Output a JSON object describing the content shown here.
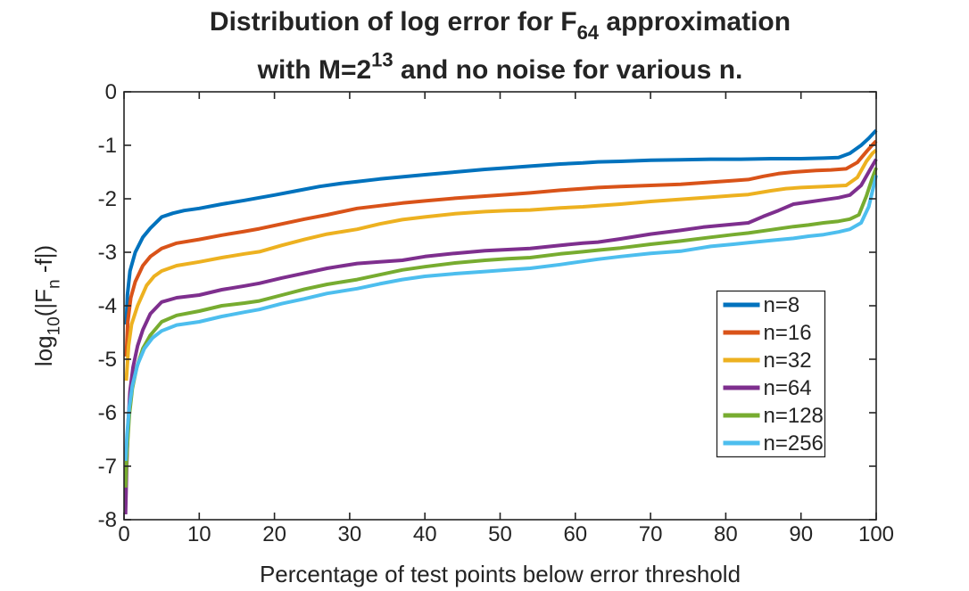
{
  "figure": {
    "background": "#ffffff",
    "axis_color": "#242424",
    "text_color": "#242424"
  },
  "chart_data": {
    "type": "line",
    "title": "Distribution of log error for F_{64} approximation with M=2^{13} and no noise for various n.",
    "title_lines": [
      {
        "segments": [
          {
            "t": "Distribution of log error for F"
          },
          {
            "t": "64",
            "sub": true
          },
          {
            "t": " approximation"
          }
        ]
      },
      {
        "segments": [
          {
            "t": "with M=2"
          },
          {
            "t": "13",
            "sup": true
          },
          {
            "t": " and no noise for various n."
          }
        ]
      }
    ],
    "xlabel": "Percentage of test points below error threshold",
    "ylabel": "log_{10}(|F_n -f|)",
    "ylabel_segments": [
      {
        "t": "log"
      },
      {
        "t": "10",
        "sub": true
      },
      {
        "t": "(|F"
      },
      {
        "t": "n",
        "sub": true
      },
      {
        "t": " -f|)"
      }
    ],
    "xlim": [
      0,
      100
    ],
    "ylim": [
      -8,
      0
    ],
    "xticks": [
      0,
      10,
      20,
      30,
      40,
      50,
      60,
      70,
      80,
      90,
      100
    ],
    "yticks": [
      0,
      -1,
      -2,
      -3,
      -4,
      -5,
      -6,
      -7,
      -8
    ],
    "grid": false,
    "box": true,
    "tick_direction": "in",
    "legend": {
      "position": "inside-right",
      "entries": [
        {
          "label": "n=8",
          "color": "#0072BD"
        },
        {
          "label": "n=16",
          "color": "#D95319"
        },
        {
          "label": "n=32",
          "color": "#EDB120"
        },
        {
          "label": "n=64",
          "color": "#7E2F8E"
        },
        {
          "label": "n=128",
          "color": "#77AC30"
        },
        {
          "label": "n=256",
          "color": "#4DBEEE"
        }
      ]
    },
    "series": [
      {
        "name": "n=8",
        "color": "#0072BD",
        "line_width": 4,
        "points": [
          [
            0.3,
            -4.35
          ],
          [
            0.45,
            -3.8
          ],
          [
            0.8,
            -3.35
          ],
          [
            1.5,
            -3.0
          ],
          [
            2.5,
            -2.72
          ],
          [
            3.5,
            -2.55
          ],
          [
            5,
            -2.34
          ],
          [
            6.5,
            -2.27
          ],
          [
            8,
            -2.22
          ],
          [
            10,
            -2.18
          ],
          [
            13,
            -2.1
          ],
          [
            16,
            -2.03
          ],
          [
            18,
            -1.98
          ],
          [
            20,
            -1.93
          ],
          [
            23,
            -1.85
          ],
          [
            26,
            -1.77
          ],
          [
            29,
            -1.71
          ],
          [
            31,
            -1.68
          ],
          [
            34,
            -1.63
          ],
          [
            37,
            -1.59
          ],
          [
            40,
            -1.55
          ],
          [
            44,
            -1.5
          ],
          [
            48,
            -1.45
          ],
          [
            51,
            -1.42
          ],
          [
            54,
            -1.39
          ],
          [
            58,
            -1.35
          ],
          [
            61,
            -1.33
          ],
          [
            63,
            -1.31
          ],
          [
            66,
            -1.3
          ],
          [
            70,
            -1.28
          ],
          [
            74,
            -1.27
          ],
          [
            78,
            -1.26
          ],
          [
            82,
            -1.26
          ],
          [
            86,
            -1.25
          ],
          [
            90,
            -1.25
          ],
          [
            93,
            -1.24
          ],
          [
            95,
            -1.23
          ],
          [
            96.5,
            -1.15
          ],
          [
            98,
            -1.0
          ],
          [
            99,
            -0.87
          ],
          [
            99.6,
            -0.78
          ],
          [
            100,
            -0.72
          ]
        ]
      },
      {
        "name": "n=16",
        "color": "#D95319",
        "line_width": 4,
        "points": [
          [
            0.3,
            -4.95
          ],
          [
            0.5,
            -4.3
          ],
          [
            0.9,
            -3.85
          ],
          [
            1.5,
            -3.55
          ],
          [
            2.5,
            -3.25
          ],
          [
            3.5,
            -3.08
          ],
          [
            5,
            -2.93
          ],
          [
            7,
            -2.83
          ],
          [
            10,
            -2.76
          ],
          [
            13,
            -2.68
          ],
          [
            16,
            -2.61
          ],
          [
            18,
            -2.56
          ],
          [
            21,
            -2.47
          ],
          [
            24,
            -2.38
          ],
          [
            27,
            -2.3
          ],
          [
            31,
            -2.18
          ],
          [
            34,
            -2.13
          ],
          [
            37,
            -2.08
          ],
          [
            40,
            -2.04
          ],
          [
            44,
            -1.99
          ],
          [
            48,
            -1.95
          ],
          [
            51,
            -1.92
          ],
          [
            54,
            -1.89
          ],
          [
            58,
            -1.84
          ],
          [
            61,
            -1.81
          ],
          [
            63,
            -1.79
          ],
          [
            66,
            -1.77
          ],
          [
            70,
            -1.75
          ],
          [
            74,
            -1.73
          ],
          [
            78,
            -1.69
          ],
          [
            81,
            -1.66
          ],
          [
            83,
            -1.64
          ],
          [
            85,
            -1.58
          ],
          [
            87,
            -1.53
          ],
          [
            89,
            -1.5
          ],
          [
            92,
            -1.47
          ],
          [
            94,
            -1.46
          ],
          [
            96,
            -1.44
          ],
          [
            97.5,
            -1.32
          ],
          [
            98.7,
            -1.12
          ],
          [
            99.5,
            -0.99
          ],
          [
            100,
            -0.92
          ]
        ]
      },
      {
        "name": "n=32",
        "color": "#EDB120",
        "line_width": 4,
        "points": [
          [
            0.3,
            -5.4
          ],
          [
            0.6,
            -4.75
          ],
          [
            1,
            -4.35
          ],
          [
            1.8,
            -4.0
          ],
          [
            3,
            -3.62
          ],
          [
            4,
            -3.45
          ],
          [
            5,
            -3.35
          ],
          [
            7,
            -3.25
          ],
          [
            10,
            -3.18
          ],
          [
            13,
            -3.1
          ],
          [
            16,
            -3.03
          ],
          [
            18,
            -2.99
          ],
          [
            21,
            -2.87
          ],
          [
            24,
            -2.76
          ],
          [
            27,
            -2.66
          ],
          [
            31,
            -2.57
          ],
          [
            34,
            -2.47
          ],
          [
            37,
            -2.39
          ],
          [
            40,
            -2.34
          ],
          [
            44,
            -2.28
          ],
          [
            48,
            -2.24
          ],
          [
            51,
            -2.22
          ],
          [
            54,
            -2.21
          ],
          [
            58,
            -2.17
          ],
          [
            61,
            -2.15
          ],
          [
            63,
            -2.13
          ],
          [
            66,
            -2.1
          ],
          [
            70,
            -2.05
          ],
          [
            74,
            -2.01
          ],
          [
            78,
            -1.97
          ],
          [
            81,
            -1.94
          ],
          [
            83,
            -1.92
          ],
          [
            86,
            -1.85
          ],
          [
            88,
            -1.81
          ],
          [
            90,
            -1.79
          ],
          [
            93,
            -1.77
          ],
          [
            96,
            -1.75
          ],
          [
            97.5,
            -1.6
          ],
          [
            98.7,
            -1.3
          ],
          [
            99.5,
            -1.15
          ],
          [
            100,
            -1.09
          ]
        ]
      },
      {
        "name": "n=64",
        "color": "#7E2F8E",
        "line_width": 4,
        "points": [
          [
            0.2,
            -7.9
          ],
          [
            0.35,
            -7.0
          ],
          [
            0.55,
            -6.2
          ],
          [
            0.8,
            -5.6
          ],
          [
            1.2,
            -5.15
          ],
          [
            1.8,
            -4.75
          ],
          [
            2.5,
            -4.45
          ],
          [
            3.5,
            -4.15
          ],
          [
            5,
            -3.93
          ],
          [
            7,
            -3.85
          ],
          [
            10,
            -3.8
          ],
          [
            13,
            -3.7
          ],
          [
            16,
            -3.63
          ],
          [
            18,
            -3.58
          ],
          [
            21,
            -3.48
          ],
          [
            24,
            -3.39
          ],
          [
            27,
            -3.3
          ],
          [
            31,
            -3.21
          ],
          [
            34,
            -3.18
          ],
          [
            37,
            -3.15
          ],
          [
            40,
            -3.08
          ],
          [
            44,
            -3.02
          ],
          [
            48,
            -2.97
          ],
          [
            51,
            -2.95
          ],
          [
            54,
            -2.93
          ],
          [
            58,
            -2.87
          ],
          [
            61,
            -2.83
          ],
          [
            63,
            -2.81
          ],
          [
            66,
            -2.75
          ],
          [
            70,
            -2.66
          ],
          [
            74,
            -2.59
          ],
          [
            77,
            -2.53
          ],
          [
            80,
            -2.49
          ],
          [
            83,
            -2.45
          ],
          [
            85,
            -2.33
          ],
          [
            87,
            -2.22
          ],
          [
            89,
            -2.1
          ],
          [
            91,
            -2.06
          ],
          [
            93,
            -2.02
          ],
          [
            95,
            -1.98
          ],
          [
            96.5,
            -1.93
          ],
          [
            98,
            -1.75
          ],
          [
            99.2,
            -1.45
          ],
          [
            100,
            -1.26
          ]
        ]
      },
      {
        "name": "n=128",
        "color": "#77AC30",
        "line_width": 4,
        "points": [
          [
            0.2,
            -7.4
          ],
          [
            0.4,
            -6.7
          ],
          [
            0.7,
            -6.05
          ],
          [
            1.1,
            -5.55
          ],
          [
            1.7,
            -5.15
          ],
          [
            2.5,
            -4.8
          ],
          [
            3.5,
            -4.55
          ],
          [
            5,
            -4.3
          ],
          [
            7,
            -4.18
          ],
          [
            10,
            -4.1
          ],
          [
            13,
            -4.0
          ],
          [
            16,
            -3.95
          ],
          [
            18,
            -3.91
          ],
          [
            21,
            -3.8
          ],
          [
            24,
            -3.69
          ],
          [
            27,
            -3.6
          ],
          [
            31,
            -3.51
          ],
          [
            34,
            -3.42
          ],
          [
            37,
            -3.33
          ],
          [
            40,
            -3.27
          ],
          [
            44,
            -3.2
          ],
          [
            48,
            -3.15
          ],
          [
            51,
            -3.12
          ],
          [
            54,
            -3.1
          ],
          [
            58,
            -3.03
          ],
          [
            61,
            -2.99
          ],
          [
            63,
            -2.96
          ],
          [
            66,
            -2.92
          ],
          [
            70,
            -2.85
          ],
          [
            74,
            -2.79
          ],
          [
            78,
            -2.72
          ],
          [
            81,
            -2.67
          ],
          [
            83,
            -2.64
          ],
          [
            86,
            -2.58
          ],
          [
            89,
            -2.52
          ],
          [
            91,
            -2.49
          ],
          [
            93,
            -2.45
          ],
          [
            95,
            -2.42
          ],
          [
            96.5,
            -2.38
          ],
          [
            97.7,
            -2.3
          ],
          [
            98.7,
            -1.95
          ],
          [
            99.4,
            -1.65
          ],
          [
            100,
            -1.42
          ]
        ]
      },
      {
        "name": "n=256",
        "color": "#4DBEEE",
        "line_width": 4,
        "points": [
          [
            0.2,
            -6.9
          ],
          [
            0.4,
            -6.4
          ],
          [
            0.7,
            -5.9
          ],
          [
            1.1,
            -5.5
          ],
          [
            1.8,
            -5.1
          ],
          [
            2.7,
            -4.8
          ],
          [
            3.8,
            -4.6
          ],
          [
            5,
            -4.47
          ],
          [
            7,
            -4.36
          ],
          [
            10,
            -4.3
          ],
          [
            13,
            -4.2
          ],
          [
            16,
            -4.12
          ],
          [
            18,
            -4.07
          ],
          [
            21,
            -3.96
          ],
          [
            24,
            -3.87
          ],
          [
            27,
            -3.77
          ],
          [
            31,
            -3.68
          ],
          [
            34,
            -3.59
          ],
          [
            37,
            -3.51
          ],
          [
            40,
            -3.45
          ],
          [
            44,
            -3.4
          ],
          [
            48,
            -3.36
          ],
          [
            51,
            -3.33
          ],
          [
            54,
            -3.3
          ],
          [
            58,
            -3.23
          ],
          [
            61,
            -3.17
          ],
          [
            63,
            -3.13
          ],
          [
            66,
            -3.08
          ],
          [
            70,
            -3.02
          ],
          [
            74,
            -2.98
          ],
          [
            78,
            -2.89
          ],
          [
            81,
            -2.85
          ],
          [
            83,
            -2.82
          ],
          [
            86,
            -2.78
          ],
          [
            89,
            -2.74
          ],
          [
            91,
            -2.7
          ],
          [
            93,
            -2.67
          ],
          [
            95,
            -2.62
          ],
          [
            96.5,
            -2.57
          ],
          [
            98,
            -2.45
          ],
          [
            99,
            -2.15
          ],
          [
            99.6,
            -1.8
          ],
          [
            100,
            -1.56
          ]
        ]
      }
    ]
  }
}
